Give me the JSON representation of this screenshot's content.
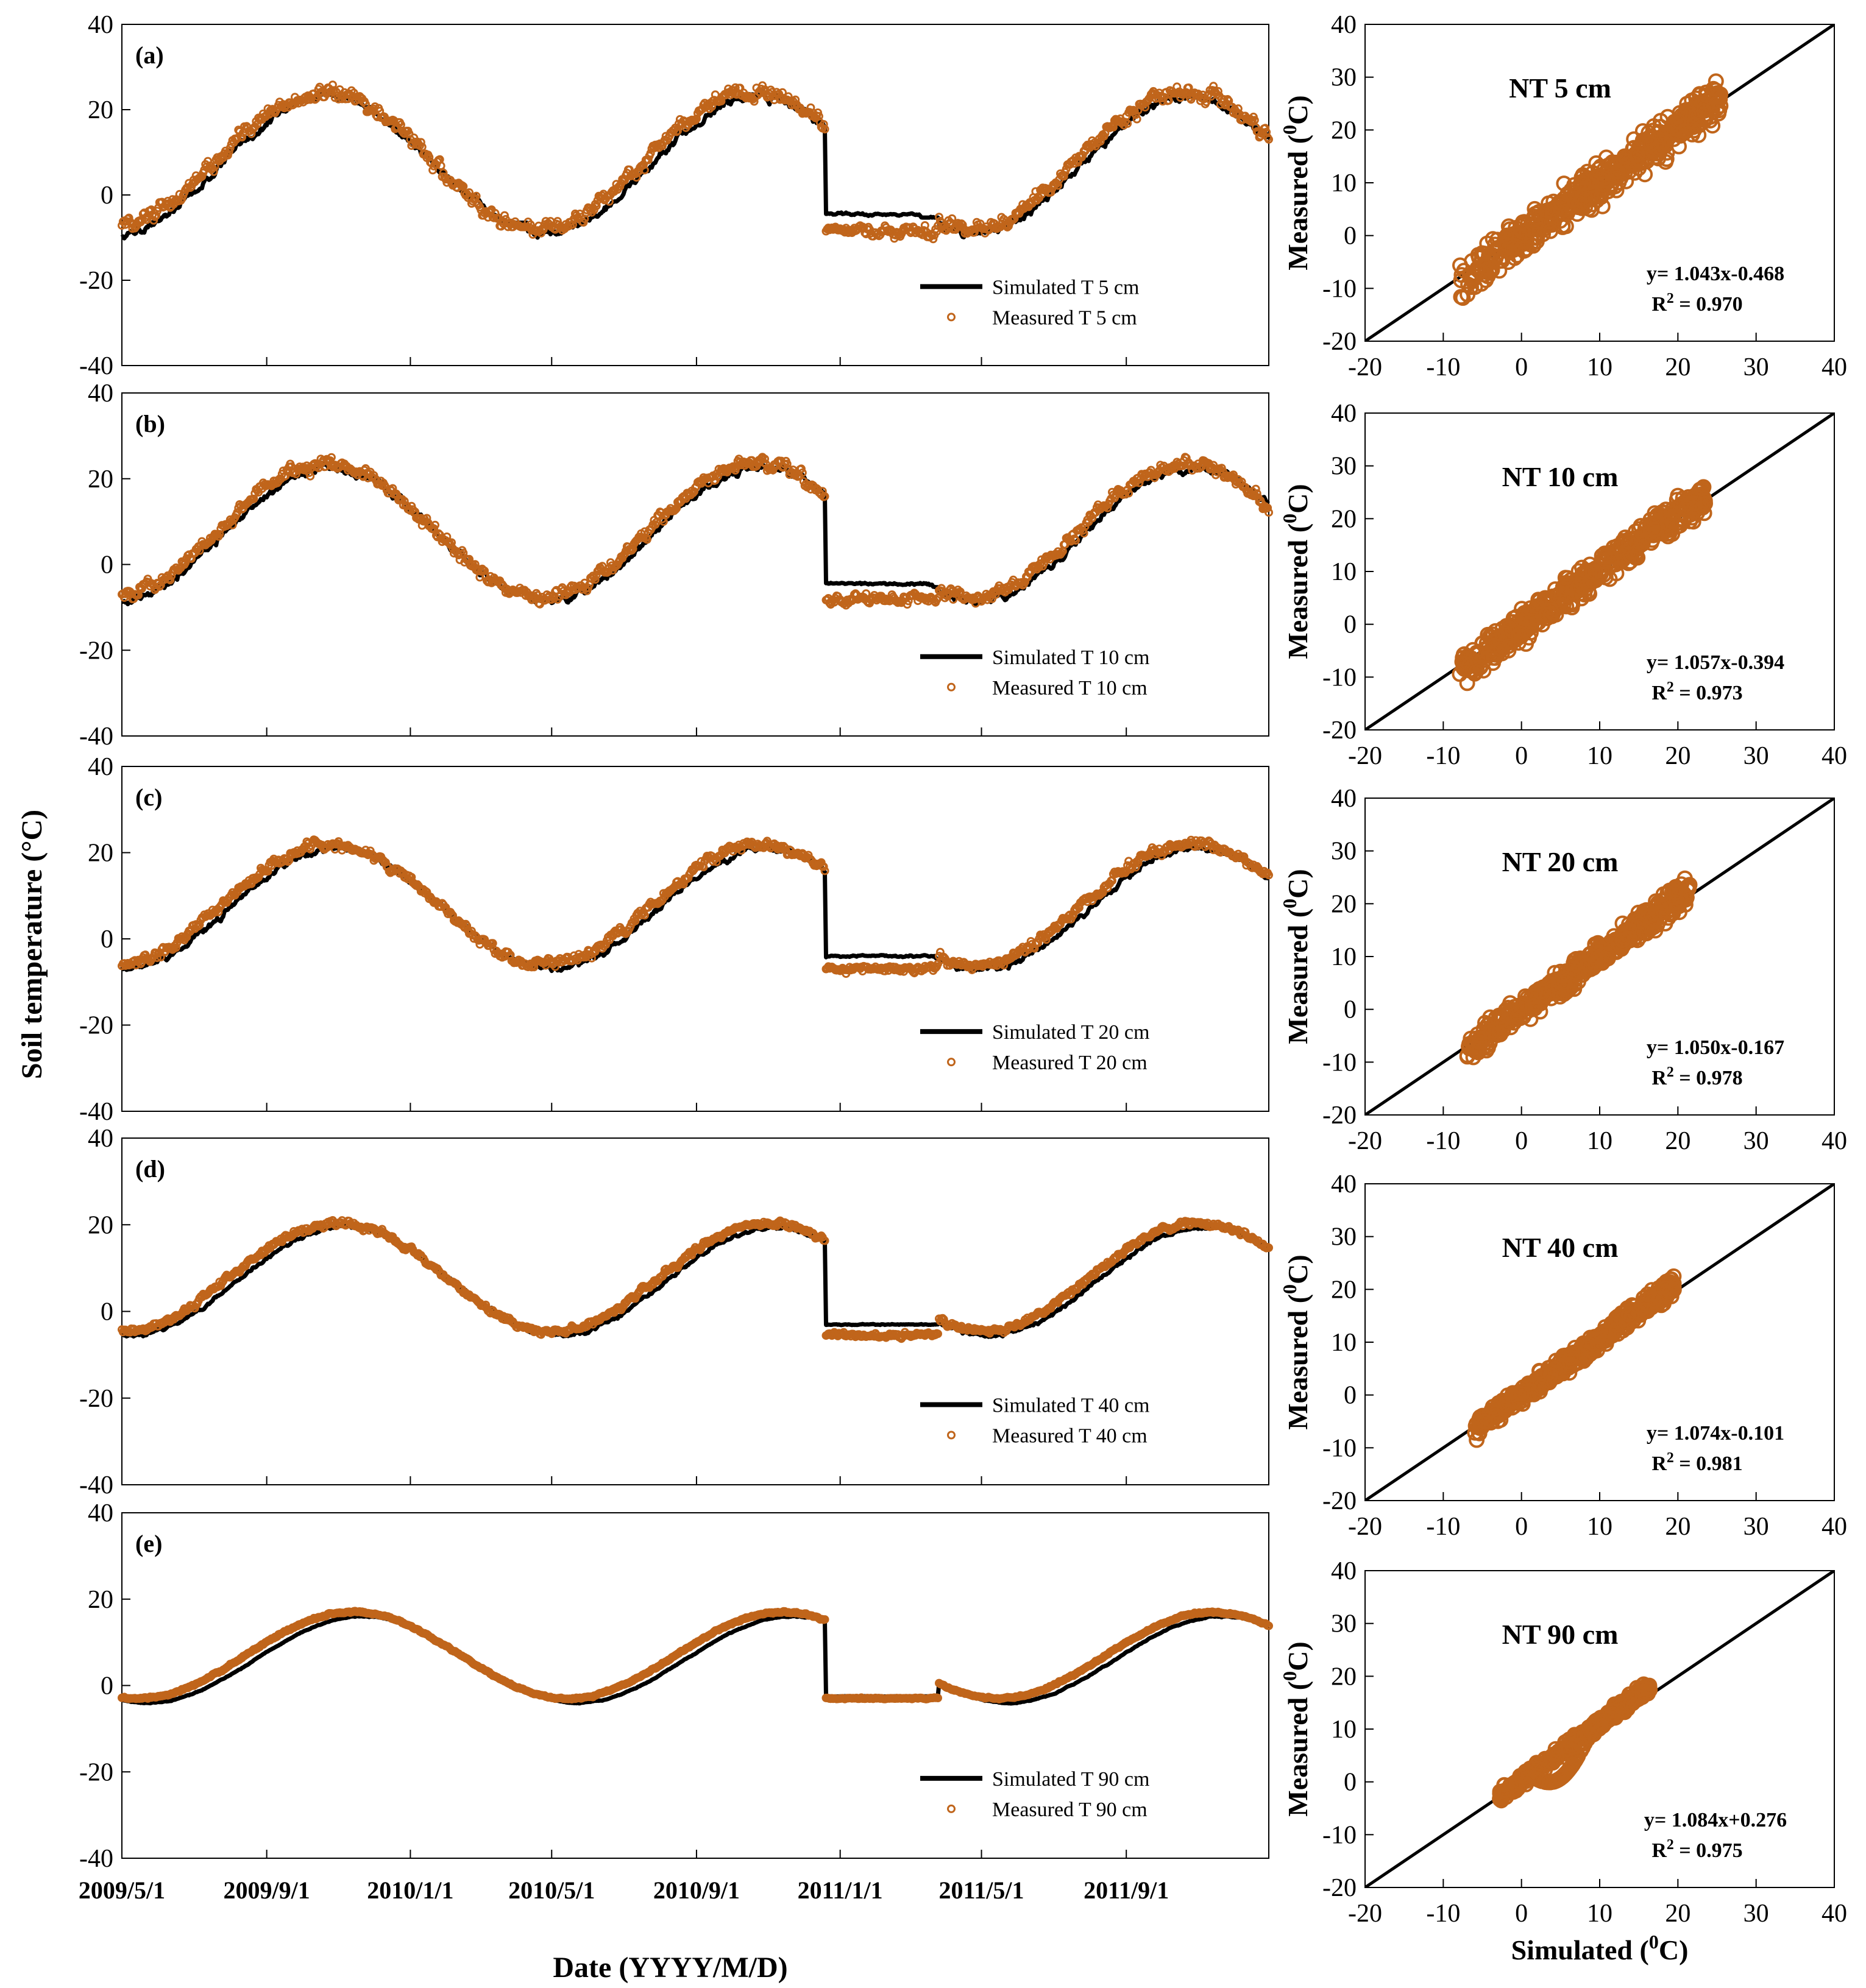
{
  "y_axis_label": "Soil temperature (°C)",
  "x_axis_label": "Date (YYYY/M/D)",
  "colors": {
    "simulated": "#000000",
    "measured": "#c0651b"
  },
  "chart_data": [
    {
      "type": "line",
      "panel": "(a)",
      "depth_cm": 5,
      "series": [
        {
          "name": "Simulated T 5 cm",
          "style": "line"
        },
        {
          "name": "Measured T 5 cm",
          "style": "markers"
        }
      ],
      "x_range": [
        "2009/5/1",
        "2011/12/31"
      ],
      "x_ticks": [
        "2009/5/1",
        "2009/9/1",
        "2010/1/1",
        "2010/5/1",
        "2010/9/1",
        "2011/1/1",
        "2011/5/1",
        "2011/9/1"
      ],
      "ylim": [
        -40,
        40
      ],
      "y_ticks": [
        -40,
        -20,
        0,
        20,
        40
      ],
      "model": {
        "mean": 8,
        "amp": 16,
        "phase_day": 80,
        "noise": 3.2,
        "winter_sim": -4.5,
        "winter_obs": -8.5,
        "lag_sim": 4
      }
    },
    {
      "type": "line",
      "panel": "(b)",
      "depth_cm": 10,
      "series": [
        {
          "name": "Simulated T 10 cm",
          "style": "line"
        },
        {
          "name": "Measured T 10 cm",
          "style": "markers"
        }
      ],
      "x_range": [
        "2009/5/1",
        "2011/12/31"
      ],
      "x_ticks": [
        "2009/5/1",
        "2009/9/1",
        "2010/1/1",
        "2010/5/1",
        "2010/9/1",
        "2011/1/1",
        "2011/5/1",
        "2011/9/1"
      ],
      "ylim": [
        -40,
        40
      ],
      "y_ticks": [
        -40,
        -20,
        0,
        20,
        40
      ],
      "model": {
        "mean": 8,
        "amp": 15.5,
        "phase_day": 82,
        "noise": 2.8,
        "winter_sim": -4.5,
        "winter_obs": -8,
        "lag_sim": 4
      }
    },
    {
      "type": "line",
      "panel": "(c)",
      "depth_cm": 20,
      "series": [
        {
          "name": "Simulated T 20 cm",
          "style": "line"
        },
        {
          "name": "Measured T 20 cm",
          "style": "markers"
        }
      ],
      "x_range": [
        "2009/5/1",
        "2011/12/31"
      ],
      "x_ticks": [
        "2009/5/1",
        "2009/9/1",
        "2010/1/1",
        "2010/5/1",
        "2010/9/1",
        "2011/1/1",
        "2011/5/1",
        "2011/9/1"
      ],
      "ylim": [
        -40,
        40
      ],
      "y_ticks": [
        -40,
        -20,
        0,
        20,
        40
      ],
      "model": {
        "mean": 8,
        "amp": 14,
        "phase_day": 86,
        "noise": 2.2,
        "winter_sim": -4,
        "winter_obs": -7,
        "lag_sim": 5
      }
    },
    {
      "type": "line",
      "panel": "(d)",
      "depth_cm": 40,
      "series": [
        {
          "name": "Simulated T 40 cm",
          "style": "line"
        },
        {
          "name": "Measured T 40 cm",
          "style": "markers"
        }
      ],
      "x_range": [
        "2009/5/1",
        "2011/12/31"
      ],
      "x_ticks": [
        "2009/5/1",
        "2009/9/1",
        "2010/1/1",
        "2010/5/1",
        "2010/9/1",
        "2011/1/1",
        "2011/5/1",
        "2011/9/1"
      ],
      "ylim": [
        -40,
        40
      ],
      "y_ticks": [
        -40,
        -20,
        0,
        20,
        40
      ],
      "model": {
        "mean": 8,
        "amp": 12.5,
        "phase_day": 92,
        "noise": 1.4,
        "winter_sim": -3,
        "winter_obs": -5.5,
        "lag_sim": 6
      }
    },
    {
      "type": "line",
      "panel": "(e)",
      "depth_cm": 90,
      "series": [
        {
          "name": "Simulated T 90 cm",
          "style": "line"
        },
        {
          "name": "Measured T 90 cm",
          "style": "markers"
        }
      ],
      "x_range": [
        "2009/5/1",
        "2011/12/31"
      ],
      "x_ticks": [
        "2009/5/1",
        "2009/9/1",
        "2010/1/1",
        "2010/5/1",
        "2010/9/1",
        "2011/1/1",
        "2011/5/1",
        "2011/9/1"
      ],
      "ylim": [
        -40,
        40
      ],
      "y_ticks": [
        -40,
        -20,
        0,
        20,
        40
      ],
      "model": {
        "mean": 7,
        "amp": 10,
        "phase_day": 105,
        "noise": 0.4,
        "winter_sim": -2.5,
        "winter_obs": -3,
        "lag_sim": 8
      }
    },
    {
      "type": "scatter",
      "title": "NT  5 cm",
      "xlabel": "Simulated (°C)",
      "ylabel": "Measured (°C)",
      "xlim": [
        -20,
        40
      ],
      "ylim": [
        -20,
        40
      ],
      "x_ticks": [
        -20,
        -10,
        0,
        10,
        20,
        30,
        40
      ],
      "y_ticks": [
        -20,
        -10,
        0,
        10,
        20,
        30,
        40
      ],
      "equation": "y= 1.043x-0.468",
      "r_squared": "R² = 0.970",
      "fit": {
        "slope": 1.043,
        "intercept": -0.468
      },
      "x_data_range": [
        -8,
        25.5
      ],
      "scatter_spread": 3.5
    },
    {
      "type": "scatter",
      "title": "NT  10 cm",
      "xlabel": "Simulated (°C)",
      "ylabel": "Measured (°C)",
      "xlim": [
        -20,
        40
      ],
      "ylim": [
        -20,
        40
      ],
      "x_ticks": [
        -20,
        -10,
        0,
        10,
        20,
        30,
        40
      ],
      "y_ticks": [
        -20,
        -10,
        0,
        10,
        20,
        30,
        40
      ],
      "equation": "y= 1.057x-0.394",
      "r_squared": "R² = 0.973",
      "fit": {
        "slope": 1.057,
        "intercept": -0.394
      },
      "x_data_range": [
        -8,
        23.5
      ],
      "scatter_spread": 3
    },
    {
      "type": "scatter",
      "title": "NT  20 cm",
      "xlabel": "Simulated (°C)",
      "ylabel": "Measured (°C)",
      "xlim": [
        -20,
        40
      ],
      "ylim": [
        -20,
        40
      ],
      "x_ticks": [
        -20,
        -10,
        0,
        10,
        20,
        30,
        40
      ],
      "y_ticks": [
        -20,
        -10,
        0,
        10,
        20,
        30,
        40
      ],
      "equation": "y= 1.050x-0.167",
      "r_squared": "R² = 0.978",
      "fit": {
        "slope": 1.05,
        "intercept": -0.167
      },
      "x_data_range": [
        -7,
        21.5
      ],
      "scatter_spread": 2.4
    },
    {
      "type": "scatter",
      "title": "NT  40 cm",
      "xlabel": "Simulated (°C)",
      "ylabel": "Measured (°C)",
      "xlim": [
        -20,
        40
      ],
      "ylim": [
        -20,
        40
      ],
      "x_ticks": [
        -20,
        -10,
        0,
        10,
        20,
        30,
        40
      ],
      "y_ticks": [
        -20,
        -10,
        0,
        10,
        20,
        30,
        40
      ],
      "equation": "y= 1.074x-0.101",
      "r_squared": "R² = 0.981",
      "fit": {
        "slope": 1.074,
        "intercept": -0.101
      },
      "x_data_range": [
        -6,
        19.5
      ],
      "scatter_spread": 1.8
    },
    {
      "type": "scatter",
      "title": "NT  90 cm",
      "xlabel": "Simulated (°C)",
      "ylabel": "Measured (°C)",
      "xlim": [
        -20,
        40
      ],
      "ylim": [
        -20,
        40
      ],
      "x_ticks": [
        -20,
        -10,
        0,
        10,
        20,
        30,
        40
      ],
      "y_ticks": [
        -20,
        -10,
        0,
        10,
        20,
        30,
        40
      ],
      "equation": "y= 1.084x+0.276",
      "r_squared": "R² = 0.975",
      "fit": {
        "slope": 1.084,
        "intercept": 0.276
      },
      "x_data_range": [
        -3,
        16.5
      ],
      "scatter_spread": 1.2
    }
  ]
}
